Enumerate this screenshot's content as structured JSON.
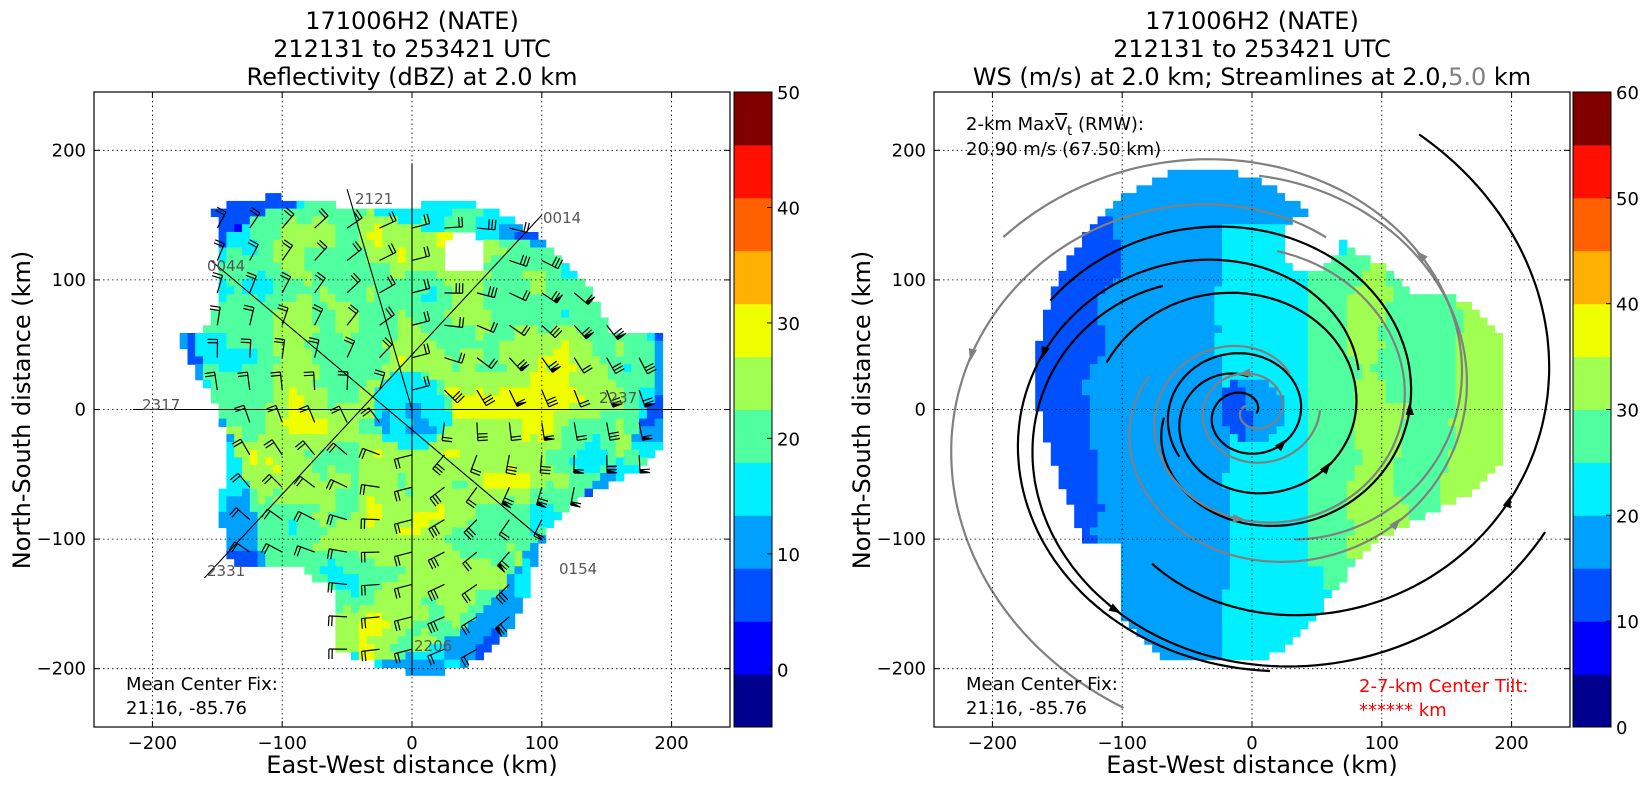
{
  "colors": {
    "reflectivity_levels": [
      "#00008f",
      "#0000ff",
      "#0050ff",
      "#00a0ff",
      "#00f0ff",
      "#50ff9f",
      "#a0ff50",
      "#f0ff00",
      "#ffb000",
      "#ff6000",
      "#ff1000",
      "#800000"
    ],
    "wind_levels": [
      "#00008f",
      "#0000ff",
      "#0050ff",
      "#00a0ff",
      "#00f0ff",
      "#50ff9f",
      "#a0ff50",
      "#f0ff00",
      "#ffb000",
      "#ff6000",
      "#ff1000",
      "#800000"
    ],
    "streamline_2km": "#000000",
    "streamline_5km": "#808080",
    "tilt_text": "#ff0000"
  },
  "chart_data": [
    {
      "type": "heatmap",
      "title_lines": [
        "171006H2 (NATE)",
        "212131 to 253421 UTC",
        "Reflectivity (dBZ) at 2.0 km"
      ],
      "xlabel": "East-West distance (km)",
      "ylabel": "North-South distance (km)",
      "xlim": [
        -245,
        245
      ],
      "ylim": [
        -245,
        245
      ],
      "x_ticks": [
        "−200",
        "−100",
        "0",
        "100",
        "200"
      ],
      "y_ticks": [
        "200",
        "100",
        "0",
        "−100",
        "−200"
      ],
      "grid": true,
      "colorbar": {
        "min": -5,
        "max": 50,
        "step": 5,
        "tick_labels": [
          "50",
          "40",
          "30",
          "20",
          "10",
          "0"
        ]
      },
      "annotation": {
        "line1": "Mean Center Fix:",
        "line2": "21.16, -85.76"
      },
      "flight_legs": [
        {
          "label": "2121"
        },
        {
          "label": "0014"
        },
        {
          "label": "0044"
        },
        {
          "label": "2317"
        },
        {
          "label": "2237"
        },
        {
          "label": "2331"
        },
        {
          "label": "0154"
        },
        {
          "label": "2206"
        }
      ]
    },
    {
      "type": "heatmap",
      "title_lines": [
        "171006H2 (NATE)",
        "212131 to 253421 UTC"
      ],
      "title_line3": {
        "main": "WS (m/s) at 2.0 km; Streamlines at 2.0,",
        "gray": "5.0",
        "tail": " km"
      },
      "xlabel": "East-West distance (km)",
      "ylabel": "North-South distance (km)",
      "xlim": [
        -245,
        245
      ],
      "ylim": [
        -245,
        245
      ],
      "x_ticks": [
        "−200",
        "−100",
        "0",
        "100",
        "200"
      ],
      "y_ticks": [
        "200",
        "100",
        "0",
        "−100",
        "−200"
      ],
      "grid": true,
      "colorbar": {
        "min": 0,
        "max": 60,
        "step": 5,
        "tick_labels": [
          "60",
          "50",
          "40",
          "30",
          "20",
          "10",
          "0"
        ]
      },
      "annotation_top": {
        "line1_prefix": "2-km Max",
        "line1_symbol": "V",
        "line1_sub": "t",
        "line1_suffix": " (RMW):",
        "line2": "20.90 m/s (67.50 km)"
      },
      "annotation": {
        "line1": "Mean Center Fix:",
        "line2": "21.16, -85.76"
      },
      "tilt": {
        "line1": "2-7-km Center Tilt:",
        "line2": "****** km"
      }
    }
  ]
}
